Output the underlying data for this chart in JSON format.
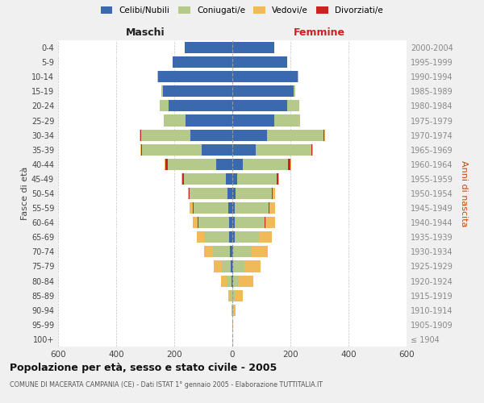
{
  "age_groups": [
    "100+",
    "95-99",
    "90-94",
    "85-89",
    "80-84",
    "75-79",
    "70-74",
    "65-69",
    "60-64",
    "55-59",
    "50-54",
    "45-49",
    "40-44",
    "35-39",
    "30-34",
    "25-29",
    "20-24",
    "15-19",
    "10-14",
    "5-9",
    "0-4"
  ],
  "birth_years": [
    "≤ 1904",
    "1905-1909",
    "1910-1914",
    "1915-1919",
    "1920-1924",
    "1925-1929",
    "1930-1934",
    "1935-1939",
    "1940-1944",
    "1945-1949",
    "1950-1954",
    "1955-1959",
    "1960-1964",
    "1965-1969",
    "1970-1974",
    "1975-1979",
    "1980-1984",
    "1985-1989",
    "1990-1994",
    "1995-1999",
    "2000-2004"
  ],
  "maschi_celibi": [
    0,
    0,
    0,
    0,
    3,
    5,
    8,
    10,
    12,
    15,
    18,
    22,
    55,
    105,
    145,
    160,
    220,
    240,
    255,
    205,
    165
  ],
  "maschi_coniugati": [
    0,
    1,
    2,
    7,
    17,
    32,
    58,
    85,
    105,
    118,
    128,
    145,
    168,
    205,
    170,
    75,
    30,
    4,
    2,
    0,
    0
  ],
  "maschi_vedovi": [
    0,
    0,
    2,
    8,
    18,
    28,
    32,
    28,
    16,
    10,
    4,
    3,
    2,
    2,
    2,
    1,
    0,
    0,
    0,
    0,
    0
  ],
  "maschi_divorziati": [
    0,
    0,
    0,
    0,
    0,
    0,
    0,
    0,
    2,
    4,
    4,
    4,
    7,
    4,
    2,
    1,
    0,
    0,
    0,
    0,
    0
  ],
  "femmine_nubili": [
    0,
    0,
    0,
    0,
    2,
    3,
    4,
    7,
    7,
    9,
    11,
    16,
    35,
    80,
    120,
    145,
    190,
    210,
    225,
    190,
    145
  ],
  "femmine_coniugate": [
    0,
    1,
    2,
    9,
    19,
    38,
    62,
    85,
    105,
    115,
    125,
    138,
    158,
    192,
    195,
    85,
    40,
    7,
    2,
    0,
    0
  ],
  "femmine_vedove": [
    0,
    2,
    10,
    28,
    50,
    55,
    55,
    45,
    32,
    18,
    7,
    4,
    2,
    2,
    2,
    1,
    1,
    0,
    0,
    0,
    0
  ],
  "femmine_divorziate": [
    0,
    0,
    0,
    0,
    0,
    0,
    0,
    0,
    2,
    4,
    4,
    4,
    7,
    4,
    2,
    1,
    0,
    0,
    0,
    0,
    0
  ],
  "colors_celibi": "#3a6aad",
  "colors_coniugati": "#b5c98a",
  "colors_vedovi": "#f0b95a",
  "colors_divorziati": "#cc2222",
  "title": "Popolazione per età, sesso e stato civile - 2005",
  "subtitle": "COMUNE DI MACERATA CAMPANIA (CE) - Dati ISTAT 1° gennaio 2005 - Elaborazione TUTTITALIA.IT",
  "label_maschi": "Maschi",
  "label_femmine": "Femmine",
  "ylabel_left": "Fasce di età",
  "ylabel_right": "Anni di nascita",
  "legend_labels": [
    "Celibi/Nubili",
    "Coniugati/e",
    "Vedovi/e",
    "Divorziati/e"
  ],
  "xlim": 600,
  "bg_color": "#f0f0f0",
  "plot_bg": "#ffffff"
}
